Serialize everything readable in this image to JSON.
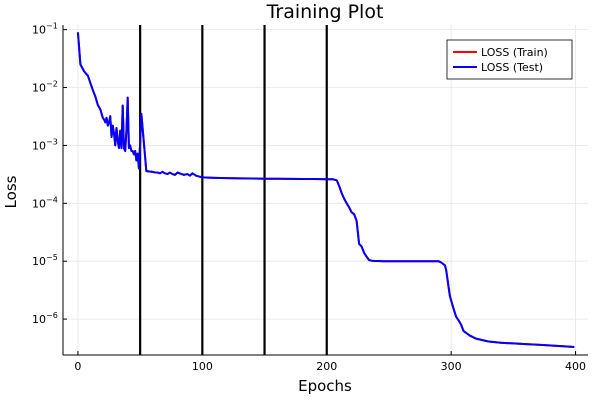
{
  "chart_data": {
    "type": "line",
    "title": "Training Plot",
    "xlabel": "Epochs",
    "ylabel": "Loss",
    "xlim": [
      -12,
      410
    ],
    "ylim_log10": [
      -6.62,
      -0.92
    ],
    "y_scale": "log",
    "grid": true,
    "legend_position": "top-right",
    "x_ticks": [
      {
        "value": 0,
        "label": "0"
      },
      {
        "value": 100,
        "label": "100"
      },
      {
        "value": 200,
        "label": "200"
      },
      {
        "value": 300,
        "label": "300"
      },
      {
        "value": 400,
        "label": "400"
      }
    ],
    "y_ticks": [
      {
        "exp": -6,
        "base": "10",
        "sup": "−6"
      },
      {
        "exp": -5,
        "base": "10",
        "sup": "−5"
      },
      {
        "exp": -4,
        "base": "10",
        "sup": "−4"
      },
      {
        "exp": -3,
        "base": "10",
        "sup": "−3"
      },
      {
        "exp": -2,
        "base": "10",
        "sup": "−2"
      },
      {
        "exp": -1,
        "base": "10",
        "sup": "−1"
      }
    ],
    "vertical_lines": [
      50,
      100,
      150,
      200
    ],
    "series": [
      {
        "name": "LOSS (Train)",
        "color": "#ff0000",
        "x": [
          0,
          2,
          5,
          8,
          10,
          12,
          14,
          16,
          18,
          20,
          21,
          22,
          23,
          24,
          25,
          26,
          27,
          28,
          29,
          30,
          31,
          32,
          33,
          34,
          35,
          36,
          37,
          38,
          39,
          40,
          41,
          42,
          43,
          44,
          45,
          46,
          47,
          48,
          49,
          50,
          51,
          55,
          60,
          62,
          64,
          66,
          68,
          70,
          72,
          74,
          76,
          78,
          80,
          85,
          88,
          90,
          92,
          95,
          100,
          110,
          120,
          130,
          140,
          150,
          160,
          170,
          180,
          190,
          200,
          205,
          208,
          210,
          212,
          214,
          216,
          218,
          220,
          222,
          224,
          226,
          228,
          230,
          232,
          234,
          236,
          238,
          240,
          245,
          250,
          260,
          270,
          280,
          290,
          292,
          295,
          296,
          297,
          298,
          299,
          300,
          302,
          304,
          306,
          308,
          310,
          315,
          320,
          330,
          340,
          350,
          360,
          370,
          380,
          390,
          399
        ],
        "y": [
          0.09,
          0.025,
          0.019,
          0.016,
          0.012,
          0.009,
          0.007,
          0.005,
          0.0042,
          0.003,
          0.0028,
          0.0025,
          0.003,
          0.0022,
          0.0025,
          0.0032,
          0.0014,
          0.0022,
          0.0016,
          0.001,
          0.002,
          0.0012,
          0.0009,
          0.0018,
          0.0009,
          0.0049,
          0.0009,
          0.0008,
          0.0018,
          0.0067,
          0.0009,
          0.001,
          0.0008,
          0.0008,
          0.0007,
          0.0008,
          0.00055,
          0.00072,
          0.0004,
          0.0011,
          0.0035,
          0.00036,
          0.00035,
          0.00034,
          0.00034,
          0.00033,
          0.00035,
          0.00033,
          0.00032,
          0.00034,
          0.00032,
          0.00031,
          0.00034,
          0.00031,
          0.00032,
          0.0003,
          0.00033,
          0.0003,
          0.00028,
          0.000275,
          0.000272,
          0.00027,
          0.000268,
          0.000266,
          0.000265,
          0.000264,
          0.000263,
          0.000263,
          0.00026,
          0.00026,
          0.00025,
          0.0002,
          0.00015,
          0.00012,
          0.0001,
          8.5e-05,
          7e-05,
          6.5e-05,
          5e-05,
          2e-05,
          1.8e-05,
          1.4e-05,
          1.2e-05,
          1.05e-05,
          1.02e-05,
          1.01e-05,
          1.01e-05,
          1e-05,
          1e-05,
          1e-05,
          1e-05,
          1e-05,
          1e-05,
          9.5e-06,
          8.5e-06,
          7e-06,
          5e-06,
          3.5e-06,
          2.5e-06,
          2.1e-06,
          1.5e-06,
          1.1e-06,
          9.5e-07,
          8e-07,
          6.2e-07,
          5.2e-07,
          4.6e-07,
          4.1e-07,
          3.9e-07,
          3.8e-07,
          3.7e-07,
          3.6e-07,
          3.5e-07,
          3.4e-07,
          3.3e-07
        ]
      },
      {
        "name": "LOSS (Test)",
        "color": "#0000ff",
        "x": [
          0,
          2,
          5,
          8,
          10,
          12,
          14,
          16,
          18,
          20,
          21,
          22,
          23,
          24,
          25,
          26,
          27,
          28,
          29,
          30,
          31,
          32,
          33,
          34,
          35,
          36,
          37,
          38,
          39,
          40,
          41,
          42,
          43,
          44,
          45,
          46,
          47,
          48,
          49,
          50,
          51,
          55,
          60,
          62,
          64,
          66,
          68,
          70,
          72,
          74,
          76,
          78,
          80,
          85,
          88,
          90,
          92,
          95,
          100,
          110,
          120,
          130,
          140,
          150,
          160,
          170,
          180,
          190,
          200,
          205,
          208,
          210,
          212,
          214,
          216,
          218,
          220,
          222,
          224,
          226,
          228,
          230,
          232,
          234,
          236,
          238,
          240,
          245,
          250,
          260,
          270,
          280,
          290,
          292,
          295,
          296,
          297,
          298,
          299,
          300,
          302,
          304,
          306,
          308,
          310,
          315,
          320,
          330,
          340,
          350,
          360,
          370,
          380,
          390,
          399
        ],
        "y": [
          0.09,
          0.025,
          0.019,
          0.016,
          0.012,
          0.009,
          0.007,
          0.005,
          0.0042,
          0.003,
          0.0028,
          0.0025,
          0.003,
          0.0022,
          0.0025,
          0.0032,
          0.0014,
          0.0022,
          0.0016,
          0.001,
          0.002,
          0.0012,
          0.0009,
          0.0018,
          0.0009,
          0.0049,
          0.0009,
          0.0008,
          0.0018,
          0.0067,
          0.0009,
          0.001,
          0.0008,
          0.0008,
          0.0007,
          0.0008,
          0.00055,
          0.00072,
          0.0004,
          0.0011,
          0.0035,
          0.00036,
          0.00035,
          0.00034,
          0.00034,
          0.00033,
          0.00035,
          0.00033,
          0.00032,
          0.00034,
          0.00032,
          0.00031,
          0.00034,
          0.00031,
          0.00032,
          0.0003,
          0.00033,
          0.0003,
          0.00028,
          0.000275,
          0.000272,
          0.00027,
          0.000268,
          0.000266,
          0.000265,
          0.000264,
          0.000263,
          0.000263,
          0.00026,
          0.00026,
          0.00025,
          0.0002,
          0.00015,
          0.00012,
          0.0001,
          8.5e-05,
          7e-05,
          6.5e-05,
          5e-05,
          2e-05,
          1.8e-05,
          1.4e-05,
          1.2e-05,
          1.05e-05,
          1.02e-05,
          1.01e-05,
          1.01e-05,
          1e-05,
          1e-05,
          1e-05,
          1e-05,
          1e-05,
          1e-05,
          9.5e-06,
          8.5e-06,
          7e-06,
          5e-06,
          3.5e-06,
          2.5e-06,
          2.1e-06,
          1.5e-06,
          1.1e-06,
          9.5e-07,
          8e-07,
          6.2e-07,
          5.2e-07,
          4.6e-07,
          4.1e-07,
          3.9e-07,
          3.8e-07,
          3.7e-07,
          3.6e-07,
          3.5e-07,
          3.4e-07,
          3.3e-07
        ]
      }
    ]
  }
}
